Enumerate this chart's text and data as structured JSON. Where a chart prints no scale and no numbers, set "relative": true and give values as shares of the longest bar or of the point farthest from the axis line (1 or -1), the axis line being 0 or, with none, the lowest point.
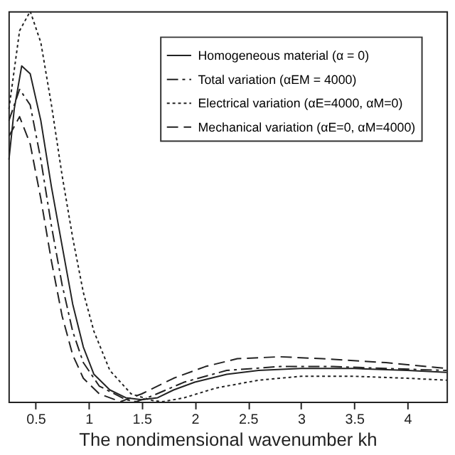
{
  "chart_data": {
    "type": "line",
    "xlabel": "The nondimensional wavenumber kh",
    "relative": true,
    "xlim": [
      0.245,
      4.37
    ],
    "xticks": [
      0.5,
      1,
      1.5,
      2,
      2.5,
      3,
      3.5,
      4
    ],
    "tick_labels": "x",
    "grid": false,
    "legend": "top right",
    "marker": "none",
    "series": [
      {
        "name": "Homogeneous material (α = 0)",
        "color": "#222222",
        "line_style": "solid",
        "x": [
          0.25,
          0.3,
          0.37,
          0.45,
          0.55,
          0.65,
          0.75,
          0.85,
          0.95,
          1.05,
          1.2,
          1.35,
          1.5,
          1.65,
          1.8,
          2.0,
          2.3,
          2.6,
          3.0,
          3.5,
          4.0,
          4.37
        ],
        "values": [
          0.62,
          0.75,
          0.86,
          0.84,
          0.72,
          0.55,
          0.4,
          0.25,
          0.14,
          0.07,
          0.03,
          0.01,
          0.005,
          0.01,
          0.03,
          0.05,
          0.07,
          0.08,
          0.085,
          0.085,
          0.08,
          0.075
        ]
      },
      {
        "name": "Total variation (αEM = 4000)",
        "color": "#222222",
        "line_style": "dashdot",
        "x": [
          0.25,
          0.35,
          0.45,
          0.55,
          0.65,
          0.75,
          0.85,
          0.95,
          1.1,
          1.35,
          1.45,
          1.6,
          1.9,
          2.3,
          2.8,
          3.3,
          3.8,
          4.37
        ],
        "values": [
          0.72,
          0.8,
          0.76,
          0.62,
          0.45,
          0.3,
          0.18,
          0.1,
          0.04,
          0.005,
          0.0,
          0.015,
          0.05,
          0.08,
          0.09,
          0.09,
          0.085,
          0.08
        ]
      },
      {
        "name": "Electrical variation (αE=4000, αM=0)",
        "color": "#222222",
        "line_style": "dotted",
        "x": [
          0.25,
          0.35,
          0.45,
          0.55,
          0.65,
          0.75,
          0.85,
          0.95,
          1.05,
          1.2,
          1.4,
          1.6,
          1.7,
          1.9,
          2.2,
          2.6,
          3.0,
          3.5,
          4.0,
          4.37
        ],
        "values": [
          0.75,
          0.95,
          1.0,
          0.92,
          0.76,
          0.58,
          0.42,
          0.28,
          0.18,
          0.08,
          0.02,
          0.003,
          0.0,
          0.01,
          0.035,
          0.055,
          0.065,
          0.065,
          0.06,
          0.055
        ]
      },
      {
        "name": "Mechanical variation (αE=0, αM=4000)",
        "color": "#222222",
        "line_style": "dashed",
        "x": [
          0.25,
          0.35,
          0.45,
          0.55,
          0.65,
          0.75,
          0.85,
          0.95,
          1.1,
          1.3,
          1.5,
          1.8,
          2.1,
          2.4,
          2.8,
          3.2,
          3.8,
          4.37
        ],
        "values": [
          0.68,
          0.73,
          0.66,
          0.52,
          0.36,
          0.22,
          0.12,
          0.06,
          0.02,
          0.0,
          0.02,
          0.06,
          0.09,
          0.11,
          0.115,
          0.11,
          0.1,
          0.085
        ]
      }
    ]
  }
}
